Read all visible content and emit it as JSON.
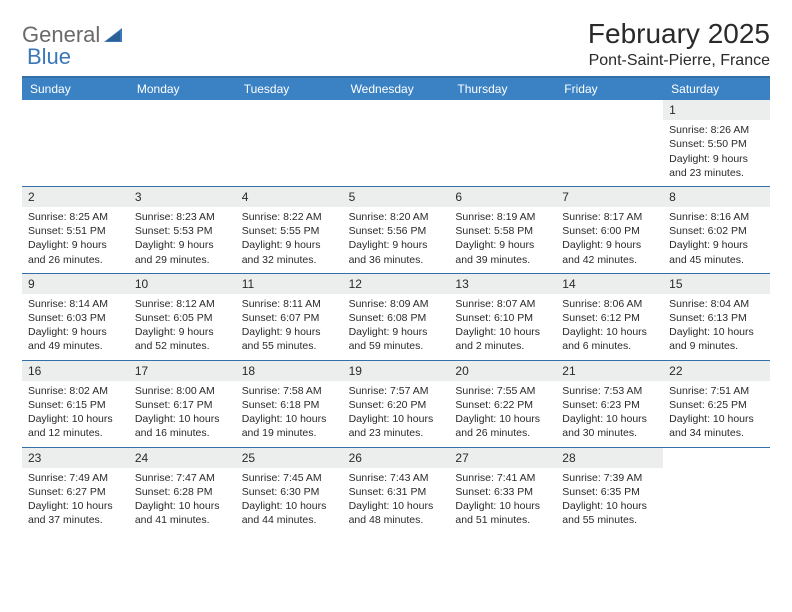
{
  "logo": {
    "word1": "General",
    "word2": "Blue"
  },
  "title": "February 2025",
  "location": "Pont-Saint-Pierre, France",
  "colors": {
    "header_bg": "#3b82c4",
    "header_text": "#ffffff",
    "divider": "#346fa8",
    "daynum_bg": "#eceded",
    "text": "#2a2a2a",
    "logo_gray": "#6a6a6a",
    "logo_blue": "#3b78b8"
  },
  "weekdays": [
    "Sunday",
    "Monday",
    "Tuesday",
    "Wednesday",
    "Thursday",
    "Friday",
    "Saturday"
  ],
  "weeks": [
    [
      null,
      null,
      null,
      null,
      null,
      null,
      {
        "n": "1",
        "sunrise": "Sunrise: 8:26 AM",
        "sunset": "Sunset: 5:50 PM",
        "day1": "Daylight: 9 hours",
        "day2": "and 23 minutes."
      }
    ],
    [
      {
        "n": "2",
        "sunrise": "Sunrise: 8:25 AM",
        "sunset": "Sunset: 5:51 PM",
        "day1": "Daylight: 9 hours",
        "day2": "and 26 minutes."
      },
      {
        "n": "3",
        "sunrise": "Sunrise: 8:23 AM",
        "sunset": "Sunset: 5:53 PM",
        "day1": "Daylight: 9 hours",
        "day2": "and 29 minutes."
      },
      {
        "n": "4",
        "sunrise": "Sunrise: 8:22 AM",
        "sunset": "Sunset: 5:55 PM",
        "day1": "Daylight: 9 hours",
        "day2": "and 32 minutes."
      },
      {
        "n": "5",
        "sunrise": "Sunrise: 8:20 AM",
        "sunset": "Sunset: 5:56 PM",
        "day1": "Daylight: 9 hours",
        "day2": "and 36 minutes."
      },
      {
        "n": "6",
        "sunrise": "Sunrise: 8:19 AM",
        "sunset": "Sunset: 5:58 PM",
        "day1": "Daylight: 9 hours",
        "day2": "and 39 minutes."
      },
      {
        "n": "7",
        "sunrise": "Sunrise: 8:17 AM",
        "sunset": "Sunset: 6:00 PM",
        "day1": "Daylight: 9 hours",
        "day2": "and 42 minutes."
      },
      {
        "n": "8",
        "sunrise": "Sunrise: 8:16 AM",
        "sunset": "Sunset: 6:02 PM",
        "day1": "Daylight: 9 hours",
        "day2": "and 45 minutes."
      }
    ],
    [
      {
        "n": "9",
        "sunrise": "Sunrise: 8:14 AM",
        "sunset": "Sunset: 6:03 PM",
        "day1": "Daylight: 9 hours",
        "day2": "and 49 minutes."
      },
      {
        "n": "10",
        "sunrise": "Sunrise: 8:12 AM",
        "sunset": "Sunset: 6:05 PM",
        "day1": "Daylight: 9 hours",
        "day2": "and 52 minutes."
      },
      {
        "n": "11",
        "sunrise": "Sunrise: 8:11 AM",
        "sunset": "Sunset: 6:07 PM",
        "day1": "Daylight: 9 hours",
        "day2": "and 55 minutes."
      },
      {
        "n": "12",
        "sunrise": "Sunrise: 8:09 AM",
        "sunset": "Sunset: 6:08 PM",
        "day1": "Daylight: 9 hours",
        "day2": "and 59 minutes."
      },
      {
        "n": "13",
        "sunrise": "Sunrise: 8:07 AM",
        "sunset": "Sunset: 6:10 PM",
        "day1": "Daylight: 10 hours",
        "day2": "and 2 minutes."
      },
      {
        "n": "14",
        "sunrise": "Sunrise: 8:06 AM",
        "sunset": "Sunset: 6:12 PM",
        "day1": "Daylight: 10 hours",
        "day2": "and 6 minutes."
      },
      {
        "n": "15",
        "sunrise": "Sunrise: 8:04 AM",
        "sunset": "Sunset: 6:13 PM",
        "day1": "Daylight: 10 hours",
        "day2": "and 9 minutes."
      }
    ],
    [
      {
        "n": "16",
        "sunrise": "Sunrise: 8:02 AM",
        "sunset": "Sunset: 6:15 PM",
        "day1": "Daylight: 10 hours",
        "day2": "and 12 minutes."
      },
      {
        "n": "17",
        "sunrise": "Sunrise: 8:00 AM",
        "sunset": "Sunset: 6:17 PM",
        "day1": "Daylight: 10 hours",
        "day2": "and 16 minutes."
      },
      {
        "n": "18",
        "sunrise": "Sunrise: 7:58 AM",
        "sunset": "Sunset: 6:18 PM",
        "day1": "Daylight: 10 hours",
        "day2": "and 19 minutes."
      },
      {
        "n": "19",
        "sunrise": "Sunrise: 7:57 AM",
        "sunset": "Sunset: 6:20 PM",
        "day1": "Daylight: 10 hours",
        "day2": "and 23 minutes."
      },
      {
        "n": "20",
        "sunrise": "Sunrise: 7:55 AM",
        "sunset": "Sunset: 6:22 PM",
        "day1": "Daylight: 10 hours",
        "day2": "and 26 minutes."
      },
      {
        "n": "21",
        "sunrise": "Sunrise: 7:53 AM",
        "sunset": "Sunset: 6:23 PM",
        "day1": "Daylight: 10 hours",
        "day2": "and 30 minutes."
      },
      {
        "n": "22",
        "sunrise": "Sunrise: 7:51 AM",
        "sunset": "Sunset: 6:25 PM",
        "day1": "Daylight: 10 hours",
        "day2": "and 34 minutes."
      }
    ],
    [
      {
        "n": "23",
        "sunrise": "Sunrise: 7:49 AM",
        "sunset": "Sunset: 6:27 PM",
        "day1": "Daylight: 10 hours",
        "day2": "and 37 minutes."
      },
      {
        "n": "24",
        "sunrise": "Sunrise: 7:47 AM",
        "sunset": "Sunset: 6:28 PM",
        "day1": "Daylight: 10 hours",
        "day2": "and 41 minutes."
      },
      {
        "n": "25",
        "sunrise": "Sunrise: 7:45 AM",
        "sunset": "Sunset: 6:30 PM",
        "day1": "Daylight: 10 hours",
        "day2": "and 44 minutes."
      },
      {
        "n": "26",
        "sunrise": "Sunrise: 7:43 AM",
        "sunset": "Sunset: 6:31 PM",
        "day1": "Daylight: 10 hours",
        "day2": "and 48 minutes."
      },
      {
        "n": "27",
        "sunrise": "Sunrise: 7:41 AM",
        "sunset": "Sunset: 6:33 PM",
        "day1": "Daylight: 10 hours",
        "day2": "and 51 minutes."
      },
      {
        "n": "28",
        "sunrise": "Sunrise: 7:39 AM",
        "sunset": "Sunset: 6:35 PM",
        "day1": "Daylight: 10 hours",
        "day2": "and 55 minutes."
      },
      null
    ]
  ]
}
